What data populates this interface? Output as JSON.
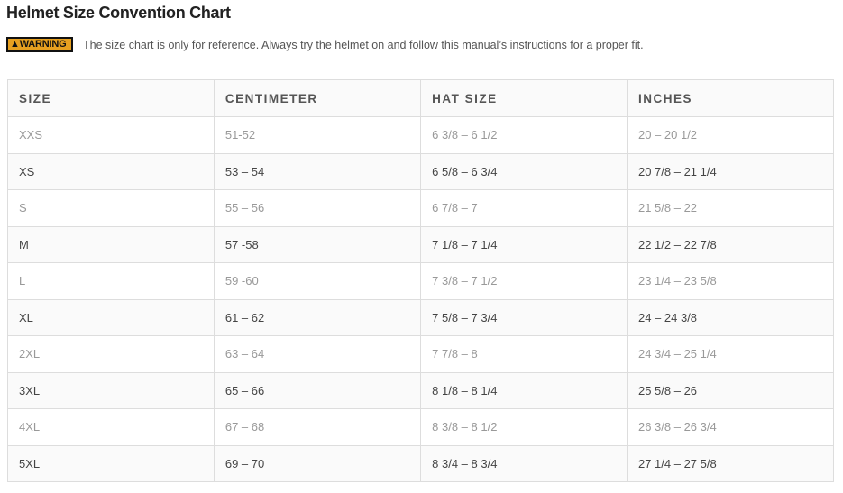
{
  "title": "Helmet Size Convention Chart",
  "warning": {
    "badge": "WARNING",
    "text": "The size chart is only for reference. Always try the helmet on and follow this manual’s instructions for a proper fit.",
    "color": "#e7a020"
  },
  "table": {
    "headers": [
      "SIZE",
      "CENTIMETER",
      "HAT SIZE",
      "INCHES"
    ],
    "rows": [
      [
        "XXS",
        "51-52",
        "6 3/8 – 6 1/2",
        "20 – 20 1/2"
      ],
      [
        "XS",
        "53 – 54",
        "6 5/8 – 6 3/4",
        "20 7/8 – 21 1/4"
      ],
      [
        "S",
        "55 – 56",
        "6 7/8 – 7",
        "21 5/8 – 22"
      ],
      [
        "M",
        "57 -58",
        "7 1/8 – 7 1/4",
        "22 1/2 – 22 7/8"
      ],
      [
        "L",
        "59 -60",
        "7 3/8 – 7 1/2",
        "23 1/4 – 23 5/8"
      ],
      [
        "XL",
        "61 – 62",
        "7 5/8 – 7 3/4",
        "24 – 24 3/8"
      ],
      [
        "2XL",
        "63 – 64",
        "7 7/8 – 8",
        "24 3/4 – 25 1/4"
      ],
      [
        "3XL",
        "65 – 66",
        "8 1/8 – 8 1/4",
        "25 5/8 – 26"
      ],
      [
        "4XL",
        "67 – 68",
        "8 3/8 – 8 1/2",
        "26 3/8 – 26 3/4"
      ],
      [
        "5XL",
        "69 – 70",
        "8 3/4 – 8 3/4",
        "27 1/4 – 27 5/8"
      ]
    ]
  }
}
